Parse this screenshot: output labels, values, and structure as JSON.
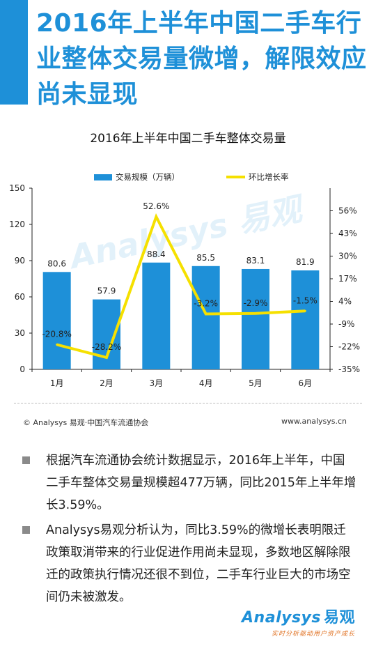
{
  "headline": "2016年上半年中国二手车行业整体交易量微增，解限效应尚未显现",
  "chart_data": {
    "type": "bar",
    "title": "2016年上半年中国二手车整体交易量",
    "categories": [
      "1月",
      "2月",
      "3月",
      "4月",
      "5月",
      "6月"
    ],
    "series": [
      {
        "name": "交易规模（万辆）",
        "type": "bar",
        "axis": "left",
        "color": "#1e90d8",
        "values": [
          80.6,
          57.9,
          88.4,
          85.5,
          83.1,
          81.9
        ],
        "labels": [
          "80.6",
          "57.9",
          "88.4",
          "85.5",
          "83.1",
          "81.9"
        ]
      },
      {
        "name": "环比增长率",
        "type": "line",
        "axis": "right",
        "color": "#f5e000",
        "values": [
          -20.8,
          -28.2,
          52.6,
          -3.2,
          -2.9,
          -1.5
        ],
        "labels": [
          "-20.8%",
          "-28.2%",
          "52.6%",
          "-3.2%",
          "-2.9%",
          "-1.5%"
        ]
      }
    ],
    "y_left": {
      "ylim": [
        0,
        150
      ],
      "ticks": [
        "0",
        "30",
        "60",
        "90",
        "120",
        "150"
      ]
    },
    "y_right": {
      "ylim": [
        -35,
        69
      ],
      "ticks": [
        "-35%",
        "-22%",
        "-9%",
        "4%",
        "17%",
        "30%",
        "43%",
        "56%"
      ]
    },
    "legend_position": "top",
    "grid": false,
    "watermark": "Analysys 易观"
  },
  "source": {
    "copyright": "© Analysys 易观·中国汽车流通协会",
    "site": "www.analysys.cn"
  },
  "bullets": [
    "根据汽车流通协会统计数据显示，2016年上半年，中国二手车整体交易量规模超477万辆，同比2015年上半年增长3.59%。",
    "Analysys易观分析认为，同比3.59%的微增长表明限迁政策取消带来的行业促进作用尚未显现，多数地区解除限迁的政策执行情况还很不到位，二手车行业巨大的市场空间仍未被激发。"
  ],
  "brand": {
    "logo": "Analysys",
    "logo_cn": "易观",
    "slogan": "实时分析驱动用户资产成长"
  }
}
